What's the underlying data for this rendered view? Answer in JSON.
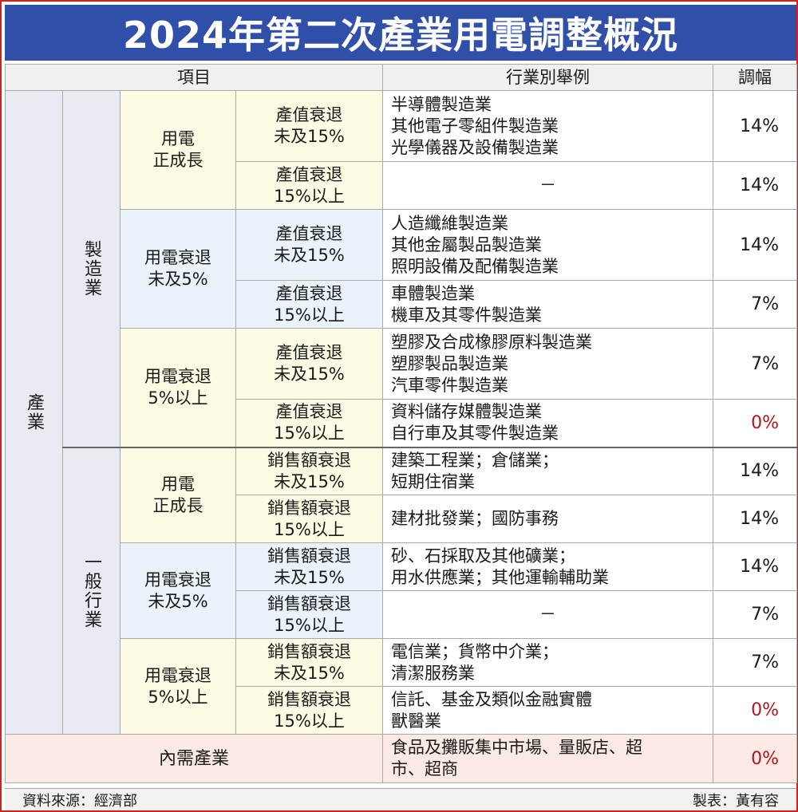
{
  "title": "2024年第二次產業用電調整概況",
  "headers": {
    "item": "項目",
    "examples": "行業別舉例",
    "rate": "調幅"
  },
  "industry_label": "產業",
  "manufacturing": {
    "label": "製造業",
    "groups": [
      {
        "label_lines": [
          "用電",
          "正成長"
        ],
        "rows": [
          {
            "sub_lines": [
              "產值衰退",
              "未及15%"
            ],
            "examples": [
              "半導體製造業",
              "其他電子零組件製造業",
              "光學儀器及設備製造業"
            ],
            "rate": "14%"
          },
          {
            "sub_lines": [
              "產值衰退",
              "15%以上"
            ],
            "examples": [
              "－"
            ],
            "rate": "14%"
          }
        ]
      },
      {
        "label_lines": [
          "用電衰退",
          "未及5%"
        ],
        "rows": [
          {
            "sub_lines": [
              "產值衰退",
              "未及15%"
            ],
            "examples": [
              "人造纖維製造業",
              "其他金屬製品製造業",
              "照明設備及配備製造業"
            ],
            "rate": "14%"
          },
          {
            "sub_lines": [
              "產值衰退",
              "15%以上"
            ],
            "examples": [
              "車體製造業",
              "機車及其零件製造業"
            ],
            "rate": "7%"
          }
        ]
      },
      {
        "label_lines": [
          "用電衰退",
          "5%以上"
        ],
        "rows": [
          {
            "sub_lines": [
              "產值衰退",
              "未及15%"
            ],
            "examples": [
              "塑膠及合成橡膠原料製造業",
              "塑膠製品製造業",
              "汽車零件製造業"
            ],
            "rate": "7%"
          },
          {
            "sub_lines": [
              "產值衰退",
              "15%以上"
            ],
            "examples": [
              "資料儲存媒體製造業",
              "自行車及其零件製造業"
            ],
            "rate": "0%"
          }
        ]
      }
    ]
  },
  "general": {
    "label": "一般行業",
    "groups": [
      {
        "label_lines": [
          "用電",
          "正成長"
        ],
        "rows": [
          {
            "sub_lines": [
              "銷售額衰退",
              "未及15%"
            ],
            "examples": [
              "建築工程業；倉儲業；",
              "短期住宿業"
            ],
            "rate": "14%"
          },
          {
            "sub_lines": [
              "銷售額衰退",
              "15%以上"
            ],
            "examples": [
              "建材批發業；國防事務"
            ],
            "rate": "14%"
          }
        ]
      },
      {
        "label_lines": [
          "用電衰退",
          "未及5%"
        ],
        "rows": [
          {
            "sub_lines": [
              "銷售額衰退",
              "未及15%"
            ],
            "examples": [
              "砂、石採取及其他礦業；",
              "用水供應業；其他運輸輔助業"
            ],
            "rate": "14%"
          },
          {
            "sub_lines": [
              "銷售額衰退",
              "15%以上"
            ],
            "examples": [
              "－"
            ],
            "rate": "7%"
          }
        ]
      },
      {
        "label_lines": [
          "用電衰退",
          "5%以上"
        ],
        "rows": [
          {
            "sub_lines": [
              "銷售額衰退",
              "未及15%"
            ],
            "examples": [
              "電信業；貨幣中介業；",
              "清潔服務業"
            ],
            "rate": "7%"
          },
          {
            "sub_lines": [
              "銷售額衰退",
              "15%以上"
            ],
            "examples": [
              "信託、基金及類似金融實體",
              "獸醫業"
            ],
            "rate": "0%"
          }
        ]
      }
    ]
  },
  "domestic": {
    "label": "內需產業",
    "examples": [
      "食品及攤販集中市場、量販店、超",
      "市、超商"
    ],
    "rate": "0%"
  },
  "footer": {
    "source": "資料來源：經濟部",
    "credit": "製表：黃有容"
  },
  "colors": {
    "title_bg": "#2f4fa8",
    "frame": "#d61f1f",
    "zero_rate": "#b0151c"
  }
}
